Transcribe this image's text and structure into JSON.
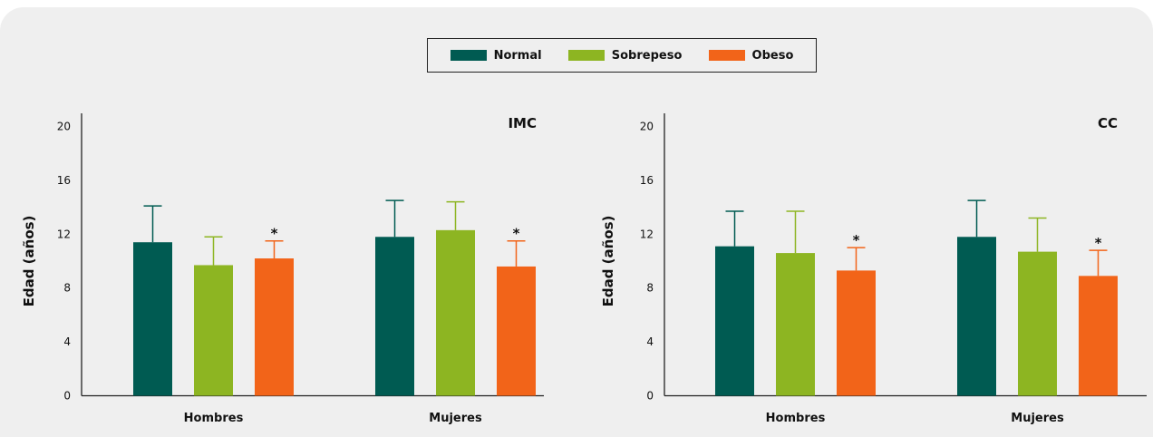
{
  "legend": {
    "items": [
      {
        "label": "Normal",
        "color": "#005b52"
      },
      {
        "label": "Sobrepeso",
        "color": "#8db522"
      },
      {
        "label": "Obeso",
        "color": "#f26419"
      }
    ]
  },
  "chart_data": [
    {
      "type": "bar",
      "title": "IMC",
      "ylabel": "Edad (años)",
      "ylim": [
        0,
        20
      ],
      "yticks": [
        0,
        4,
        8,
        12,
        16,
        20
      ],
      "categories": [
        "Hombres",
        "Mujeres"
      ],
      "grid": false,
      "series": [
        {
          "name": "Normal",
          "color": "#005b52",
          "values": [
            11.4,
            11.8
          ],
          "errors": [
            2.7,
            2.7
          ],
          "significance": [
            "",
            ""
          ]
        },
        {
          "name": "Sobrepeso",
          "color": "#8db522",
          "values": [
            9.7,
            12.3
          ],
          "errors": [
            2.1,
            2.1
          ],
          "significance": [
            "",
            ""
          ]
        },
        {
          "name": "Obeso",
          "color": "#f26419",
          "values": [
            10.2,
            9.6
          ],
          "errors": [
            1.3,
            1.9
          ],
          "significance": [
            "*",
            "*"
          ]
        }
      ]
    },
    {
      "type": "bar",
      "title": "CC",
      "ylabel": "Edad (años)",
      "ylim": [
        0,
        20
      ],
      "yticks": [
        0,
        4,
        8,
        12,
        16,
        20
      ],
      "categories": [
        "Hombres",
        "Mujeres"
      ],
      "grid": false,
      "series": [
        {
          "name": "Normal",
          "color": "#005b52",
          "values": [
            11.1,
            11.8
          ],
          "errors": [
            2.6,
            2.7
          ],
          "significance": [
            "",
            ""
          ]
        },
        {
          "name": "Sobrepeso",
          "color": "#8db522",
          "values": [
            10.6,
            10.7
          ],
          "errors": [
            3.1,
            2.5
          ],
          "significance": [
            "",
            ""
          ]
        },
        {
          "name": "Obeso",
          "color": "#f26419",
          "values": [
            9.3,
            8.9
          ],
          "errors": [
            1.7,
            1.9
          ],
          "significance": [
            "*",
            "*"
          ]
        }
      ]
    }
  ]
}
